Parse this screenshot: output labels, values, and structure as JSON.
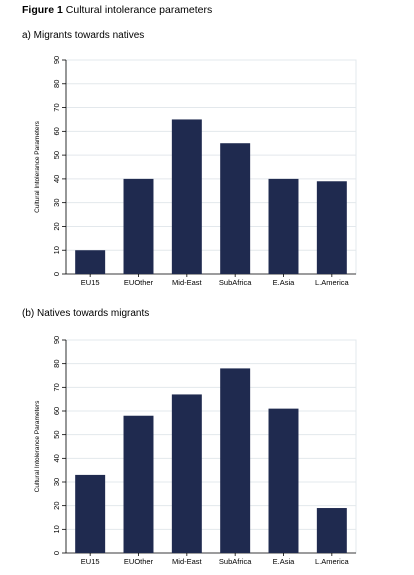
{
  "figure": {
    "label": "Figure 1",
    "title": "Cultural intolerance parameters"
  },
  "colors": {
    "bar": "#1f2a4f",
    "grid": "#e3e8ec",
    "axis": "#000000"
  },
  "chart_data": [
    {
      "type": "bar",
      "title": "a) Migrants towards natives",
      "xlabel": "",
      "ylabel": "Cultural Intolerance Parameters",
      "categories": [
        "EU15",
        "EUOther",
        "Mid-East",
        "SubAfrica",
        "E.Asia",
        "L.America"
      ],
      "values": [
        10,
        40,
        65,
        55,
        40,
        39
      ],
      "ylim": [
        0,
        90
      ],
      "yticks": [
        0,
        10,
        20,
        30,
        40,
        50,
        60,
        70,
        80,
        90
      ],
      "grid": true
    },
    {
      "type": "bar",
      "title": "(b) Natives towards migrants",
      "xlabel": "",
      "ylabel": "Cultural Intolerance Parameters",
      "categories": [
        "EU15",
        "EUOther",
        "Mid-East",
        "SubAfrica",
        "E.Asia",
        "L.America"
      ],
      "values": [
        33,
        58,
        67,
        78,
        61,
        19
      ],
      "ylim": [
        0,
        90
      ],
      "yticks": [
        0,
        10,
        20,
        30,
        40,
        50,
        60,
        70,
        80,
        90
      ],
      "grid": true
    }
  ]
}
